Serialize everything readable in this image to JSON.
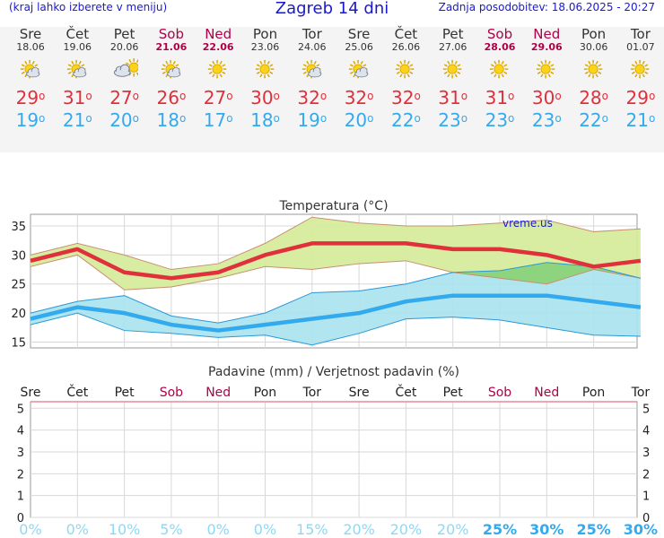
{
  "header": {
    "left_note": "(kraj lahko izberete v meniju)",
    "title": "Zagreb 14 dni",
    "updated": "Zadnja posodobitev: 18.06.2025 - 20:27"
  },
  "days": [
    {
      "name": "Sre",
      "date": "18.06",
      "weekend": false,
      "icon": "sun-cloud-icon",
      "tmax": "29",
      "tmin": "19"
    },
    {
      "name": "Čet",
      "date": "19.06",
      "weekend": false,
      "icon": "sun-cloud-icon",
      "tmax": "31",
      "tmin": "21"
    },
    {
      "name": "Pet",
      "date": "20.06",
      "weekend": false,
      "icon": "cloud-sun-icon",
      "tmax": "27",
      "tmin": "20"
    },
    {
      "name": "Sob",
      "date": "21.06",
      "weekend": true,
      "icon": "sun-cloud-icon",
      "tmax": "26",
      "tmin": "18"
    },
    {
      "name": "Ned",
      "date": "22.06",
      "weekend": true,
      "icon": "sun-icon",
      "tmax": "27",
      "tmin": "17"
    },
    {
      "name": "Pon",
      "date": "23.06",
      "weekend": false,
      "icon": "sun-icon",
      "tmax": "30",
      "tmin": "18"
    },
    {
      "name": "Tor",
      "date": "24.06",
      "weekend": false,
      "icon": "sun-cloud-icon",
      "tmax": "32",
      "tmin": "19"
    },
    {
      "name": "Sre",
      "date": "25.06",
      "weekend": false,
      "icon": "sun-cloud-icon",
      "tmax": "32",
      "tmin": "20"
    },
    {
      "name": "Čet",
      "date": "26.06",
      "weekend": false,
      "icon": "sun-icon",
      "tmax": "32",
      "tmin": "22"
    },
    {
      "name": "Pet",
      "date": "27.06",
      "weekend": false,
      "icon": "sun-icon",
      "tmax": "31",
      "tmin": "23"
    },
    {
      "name": "Sob",
      "date": "28.06",
      "weekend": true,
      "icon": "sun-icon",
      "tmax": "31",
      "tmin": "23"
    },
    {
      "name": "Ned",
      "date": "29.06",
      "weekend": true,
      "icon": "sun-icon",
      "tmax": "30",
      "tmin": "23"
    },
    {
      "name": "Pon",
      "date": "30.06",
      "weekend": false,
      "icon": "sun-icon",
      "tmax": "28",
      "tmin": "22"
    },
    {
      "name": "Tor",
      "date": "01.07",
      "weekend": false,
      "icon": "sun-icon",
      "tmax": "29",
      "tmin": "21"
    }
  ],
  "colors": {
    "max": "#e0303c",
    "min": "#33aaee",
    "max_band": "#d6ec9c",
    "min_band": "#a8e2ee",
    "overlap": "#8ed47e",
    "weekend": "#b00048",
    "prob": "#8fd8f4",
    "prob_strong": "#33aaee"
  },
  "chart_data": [
    {
      "type": "line",
      "title": "Temperatura (°C)",
      "watermark": "vreme.us",
      "x": [
        "18.06",
        "19.06",
        "20.06",
        "21.06",
        "22.06",
        "23.06",
        "24.06",
        "25.06",
        "26.06",
        "27.06",
        "28.06",
        "29.06",
        "30.06",
        "01.07"
      ],
      "yticks": [
        15,
        20,
        25,
        30,
        35
      ],
      "ylim": [
        14,
        37
      ],
      "grid": true,
      "series": [
        {
          "name": "max",
          "values": [
            29,
            31,
            27,
            26,
            27,
            30,
            32,
            32,
            32,
            31,
            31,
            30,
            28,
            29
          ]
        },
        {
          "name": "min",
          "values": [
            19,
            21,
            20,
            18,
            17,
            18,
            19,
            20,
            22,
            23,
            23,
            23,
            22,
            21
          ]
        }
      ],
      "bands": [
        {
          "name": "max-range",
          "low": [
            28,
            30,
            24,
            24.5,
            26,
            28,
            27.5,
            28.5,
            29,
            27,
            26,
            25,
            27.5,
            26
          ],
          "high": [
            30,
            32,
            30,
            27.5,
            28.5,
            32,
            36.5,
            35.5,
            35,
            35,
            35.5,
            36,
            34,
            34.5
          ]
        },
        {
          "name": "min-range",
          "low": [
            18,
            20,
            17,
            16.5,
            15.8,
            16.2,
            14.5,
            16.5,
            19,
            19.3,
            18.8,
            17.5,
            16.2,
            16
          ],
          "high": [
            20,
            22,
            23,
            19.5,
            18.3,
            20,
            23.5,
            23.8,
            25,
            27,
            27.3,
            28.7,
            28,
            26
          ]
        }
      ]
    },
    {
      "type": "bar",
      "title": "Padavine (mm) / Verjetnost padavin (%)",
      "categories": [
        "Sre",
        "Čet",
        "Pet",
        "Sob",
        "Ned",
        "Pon",
        "Tor",
        "Sre",
        "Čet",
        "Pet",
        "Sob",
        "Ned",
        "Pon",
        "Tor"
      ],
      "weekend": [
        false,
        false,
        false,
        true,
        true,
        false,
        false,
        false,
        false,
        false,
        true,
        true,
        false,
        false
      ],
      "precip_mm": [
        0,
        0,
        0,
        0,
        0,
        0,
        0,
        0,
        0,
        0,
        0,
        0,
        0,
        0
      ],
      "probability": [
        "0%",
        "0%",
        "10%",
        "5%",
        "0%",
        "0%",
        "15%",
        "20%",
        "20%",
        "20%",
        "25%",
        "30%",
        "25%",
        "30%"
      ],
      "yticks": [
        "0",
        "1",
        "2",
        "3",
        "4",
        "5"
      ],
      "ylim": [
        0,
        5.3
      ]
    }
  ]
}
